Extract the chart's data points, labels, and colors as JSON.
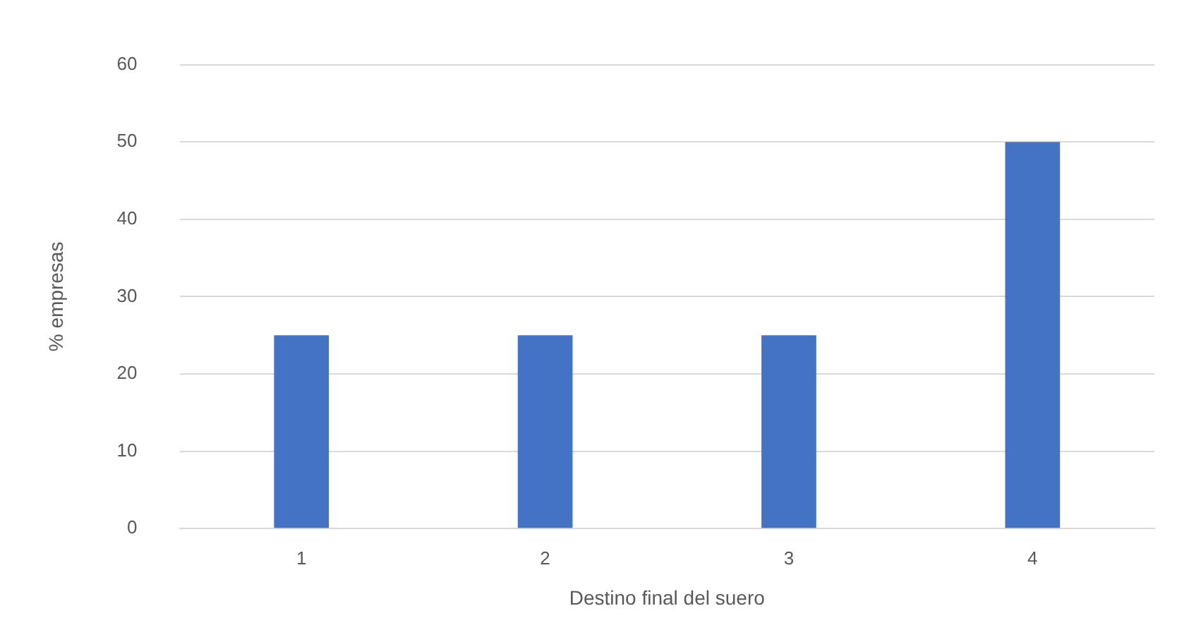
{
  "chart_data": {
    "type": "bar",
    "xlabel": "Destino final del suero",
    "ylabel": "% empresas",
    "categories": [
      "1",
      "2",
      "3",
      "4"
    ],
    "values": [
      25,
      25,
      25,
      50
    ],
    "color": "#4472c4",
    "ylim": [
      0,
      60
    ],
    "yticks": [
      0,
      10,
      20,
      30,
      40,
      50,
      60
    ],
    "grid": "y",
    "legend": false
  }
}
